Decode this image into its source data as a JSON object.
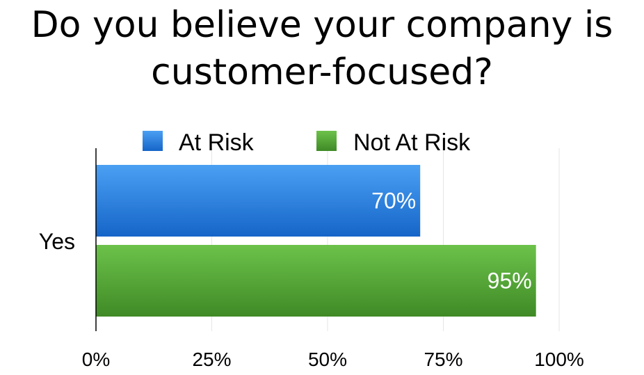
{
  "chart_data": {
    "type": "bar",
    "orientation": "horizontal",
    "title": "Do you believe your company is customer-focused?",
    "categories": [
      "Yes"
    ],
    "series": [
      {
        "name": "At Risk",
        "values": [
          70
        ],
        "color": "#2f86e0",
        "color_light": "#4ba0f3",
        "color_dark": "#1565c8"
      },
      {
        "name": "Not At Risk",
        "values": [
          95
        ],
        "color": "#5aad3c",
        "color_light": "#6cc24a",
        "color_dark": "#3f8a26"
      }
    ],
    "data_labels": [
      [
        "70%"
      ],
      [
        "95%"
      ]
    ],
    "xlim": [
      0,
      100
    ],
    "xticks": [
      0,
      25,
      50,
      75,
      100
    ],
    "xtick_labels": [
      "0%",
      "25%",
      "50%",
      "75%",
      "100%"
    ],
    "xlabel": "",
    "ylabel": "",
    "grid": true,
    "legend_position": "top"
  }
}
